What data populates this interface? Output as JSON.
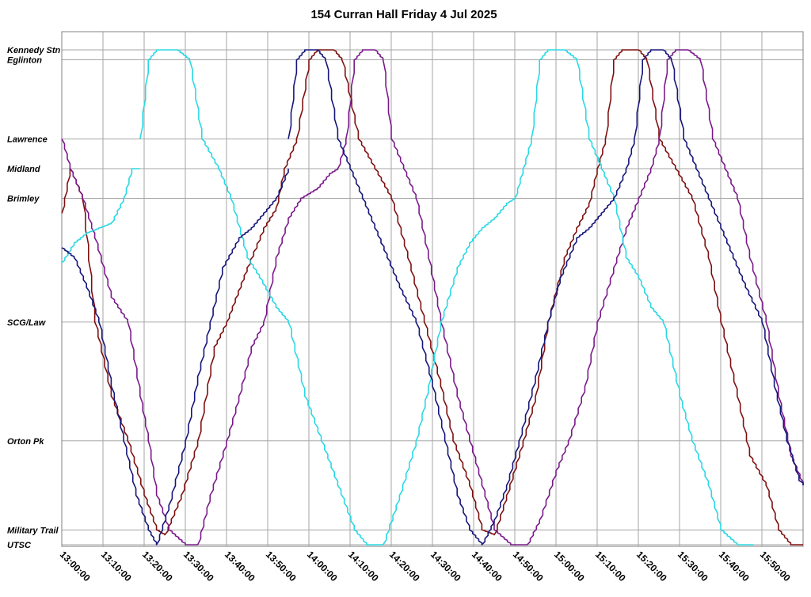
{
  "chart_data": {
    "type": "line",
    "title": "154 Curran Hall Friday 4 Jul 2025",
    "x_range": [
      "13:00:00",
      "16:00:00"
    ],
    "x_ticks": [
      "13:00:00",
      "13:10:00",
      "13:20:00",
      "13:30:00",
      "13:40:00",
      "13:50:00",
      "14:00:00",
      "14:10:00",
      "14:20:00",
      "14:30:00",
      "14:40:00",
      "14:50:00",
      "15:00:00",
      "15:10:00",
      "15:20:00",
      "15:30:00",
      "15:40:00",
      "15:50:00"
    ],
    "stops": [
      {
        "name": "Kennedy Stn",
        "pos": 100
      },
      {
        "name": "Eglinton",
        "pos": 98
      },
      {
        "name": "Lawrence",
        "pos": 82
      },
      {
        "name": "Midland",
        "pos": 76
      },
      {
        "name": "Brimley",
        "pos": 70
      },
      {
        "name": "SCG/Law",
        "pos": 45
      },
      {
        "name": "Orton Pk",
        "pos": 21
      },
      {
        "name": "Military Trail",
        "pos": 3
      },
      {
        "name": "UTSC",
        "pos": 0
      }
    ],
    "y_range": [
      0,
      100
    ],
    "grid": true,
    "legend": "none",
    "series": [
      {
        "color": "#7f1010",
        "points": [
          [
            "13:00:00",
            67
          ],
          [
            "13:02:00",
            76
          ],
          [
            "13:05:00",
            70
          ],
          [
            "13:08:00",
            45
          ],
          [
            "13:12:00",
            30
          ],
          [
            "13:16:00",
            21
          ],
          [
            "13:20:00",
            10
          ],
          [
            "13:23:00",
            3
          ],
          [
            "13:25:00",
            2
          ],
          [
            "13:29:00",
            10
          ],
          [
            "13:33:00",
            21
          ],
          [
            "13:37:00",
            40
          ],
          [
            "13:40:00",
            45
          ],
          [
            "13:45:00",
            56
          ],
          [
            "13:49:00",
            64
          ],
          [
            "13:52:00",
            68
          ],
          [
            "13:54:00",
            76
          ],
          [
            "13:57:00",
            82
          ],
          [
            "14:00:00",
            98
          ],
          [
            "14:02:00",
            100
          ],
          [
            "14:06:00",
            100
          ],
          [
            "14:08:00",
            98
          ],
          [
            "14:12:00",
            82
          ],
          [
            "14:16:00",
            76
          ],
          [
            "14:20:00",
            70
          ],
          [
            "14:24:00",
            58
          ],
          [
            "14:28:00",
            45
          ],
          [
            "14:32:00",
            32
          ],
          [
            "14:35:00",
            21
          ],
          [
            "14:39:00",
            12
          ],
          [
            "14:42:00",
            3
          ],
          [
            "14:45:00",
            2
          ],
          [
            "14:48:00",
            10
          ],
          [
            "14:52:00",
            21
          ],
          [
            "14:55:00",
            30
          ],
          [
            "14:58:00",
            45
          ],
          [
            "15:02:00",
            58
          ],
          [
            "15:05:00",
            64
          ],
          [
            "15:08:00",
            69
          ],
          [
            "15:10:00",
            76
          ],
          [
            "15:12:00",
            82
          ],
          [
            "15:14:00",
            98
          ],
          [
            "15:16:00",
            100
          ],
          [
            "15:20:00",
            100
          ],
          [
            "15:22:00",
            98
          ],
          [
            "15:25:00",
            82
          ],
          [
            "15:29:00",
            76
          ],
          [
            "15:33:00",
            70
          ],
          [
            "15:37:00",
            58
          ],
          [
            "15:40:00",
            45
          ],
          [
            "15:44:00",
            30
          ],
          [
            "15:47:00",
            18
          ],
          [
            "15:51:00",
            12
          ],
          [
            "15:54:00",
            3
          ],
          [
            "15:57:00",
            0
          ],
          [
            "16:00:00",
            0
          ]
        ]
      },
      {
        "color": "#7a1a8a",
        "points": [
          [
            "13:00:00",
            82
          ],
          [
            "13:02:00",
            76
          ],
          [
            "13:05:00",
            70
          ],
          [
            "13:08:00",
            62
          ],
          [
            "13:12:00",
            50
          ],
          [
            "13:16:00",
            45
          ],
          [
            "13:19:00",
            30
          ],
          [
            "13:21:00",
            21
          ],
          [
            "13:23:00",
            10
          ],
          [
            "13:26:00",
            3
          ],
          [
            "13:30:00",
            0
          ],
          [
            "13:33:00",
            0
          ],
          [
            "13:36:00",
            10
          ],
          [
            "13:40:00",
            21
          ],
          [
            "13:43:00",
            30
          ],
          [
            "13:46:00",
            40
          ],
          [
            "13:49:00",
            45
          ],
          [
            "13:52:00",
            58
          ],
          [
            "13:55:00",
            66
          ],
          [
            "13:58:00",
            70
          ],
          [
            "14:02:00",
            72
          ],
          [
            "14:05:00",
            75
          ],
          [
            "14:07:00",
            76
          ],
          [
            "14:09:00",
            82
          ],
          [
            "14:11:00",
            98
          ],
          [
            "14:13:00",
            100
          ],
          [
            "14:16:00",
            100
          ],
          [
            "14:18:00",
            98
          ],
          [
            "14:20:00",
            82
          ],
          [
            "14:23:00",
            76
          ],
          [
            "14:26:00",
            70
          ],
          [
            "14:29:00",
            58
          ],
          [
            "14:32:00",
            45
          ],
          [
            "14:36:00",
            30
          ],
          [
            "14:39:00",
            21
          ],
          [
            "14:42:00",
            12
          ],
          [
            "14:45:00",
            3
          ],
          [
            "14:49:00",
            0
          ],
          [
            "14:53:00",
            0
          ],
          [
            "14:56:00",
            5
          ],
          [
            "15:00:00",
            15
          ],
          [
            "15:03:00",
            21
          ],
          [
            "15:07:00",
            32
          ],
          [
            "15:10:00",
            45
          ],
          [
            "15:14:00",
            56
          ],
          [
            "15:17:00",
            64
          ],
          [
            "15:20:00",
            70
          ],
          [
            "15:23:00",
            76
          ],
          [
            "15:25:00",
            82
          ],
          [
            "15:27:00",
            98
          ],
          [
            "15:29:00",
            100
          ],
          [
            "15:32:00",
            100
          ],
          [
            "15:35:00",
            98
          ],
          [
            "15:38:00",
            82
          ],
          [
            "15:41:00",
            76
          ],
          [
            "15:44:00",
            70
          ],
          [
            "15:47:00",
            58
          ],
          [
            "15:51:00",
            45
          ],
          [
            "15:54:00",
            30
          ],
          [
            "15:57:00",
            18
          ],
          [
            "16:00:00",
            12
          ]
        ]
      },
      {
        "color": "#2ad8e4",
        "points": [
          [
            "13:00:00",
            57
          ],
          [
            "13:03:00",
            61
          ],
          [
            "13:06:00",
            63
          ],
          [
            "13:09:00",
            64
          ],
          [
            "13:12:00",
            65
          ],
          [
            "13:15:00",
            70
          ],
          [
            "13:17:00",
            76
          ],
          [
            "13:19:00",
            76
          ]
        ]
      },
      {
        "color": "#2ad8e4",
        "points": [
          [
            "13:19:00",
            82
          ],
          [
            "13:21:00",
            98
          ],
          [
            "13:23:00",
            100
          ],
          [
            "13:28:00",
            100
          ],
          [
            "13:31:00",
            98
          ],
          [
            "13:34:00",
            82
          ],
          [
            "13:38:00",
            76
          ],
          [
            "13:41:00",
            70
          ],
          [
            "13:45:00",
            58
          ],
          [
            "13:48:00",
            54
          ],
          [
            "13:52:00",
            48
          ],
          [
            "13:55:00",
            45
          ],
          [
            "13:59:00",
            30
          ],
          [
            "14:03:00",
            21
          ],
          [
            "14:07:00",
            12
          ],
          [
            "14:11:00",
            3
          ],
          [
            "14:14:00",
            0
          ],
          [
            "14:18:00",
            0
          ],
          [
            "14:22:00",
            10
          ],
          [
            "14:26:00",
            21
          ],
          [
            "14:29:00",
            32
          ],
          [
            "14:32:00",
            45
          ],
          [
            "14:36:00",
            56
          ],
          [
            "14:39:00",
            61
          ],
          [
            "14:42:00",
            64
          ],
          [
            "14:45:00",
            66
          ],
          [
            "14:48:00",
            69
          ],
          [
            "14:50:00",
            70
          ],
          [
            "14:52:00",
            76
          ],
          [
            "14:54:00",
            82
          ],
          [
            "14:56:00",
            98
          ],
          [
            "14:58:00",
            100
          ],
          [
            "15:02:00",
            100
          ],
          [
            "15:05:00",
            98
          ],
          [
            "15:08:00",
            82
          ],
          [
            "15:11:00",
            76
          ],
          [
            "15:14:00",
            70
          ],
          [
            "15:17:00",
            58
          ],
          [
            "15:20:00",
            54
          ],
          [
            "15:23:00",
            48
          ],
          [
            "15:26:00",
            45
          ],
          [
            "15:30:00",
            30
          ],
          [
            "15:33:00",
            21
          ],
          [
            "15:37:00",
            12
          ],
          [
            "15:40:00",
            3
          ],
          [
            "15:44:00",
            0
          ],
          [
            "15:48:00",
            0
          ]
        ]
      },
      {
        "color": "#16167a",
        "points": [
          [
            "13:00:00",
            60
          ],
          [
            "13:03:00",
            58
          ],
          [
            "13:06:00",
            52
          ],
          [
            "13:09:00",
            45
          ],
          [
            "13:12:00",
            32
          ],
          [
            "13:15:00",
            21
          ],
          [
            "13:18:00",
            10
          ],
          [
            "13:21:00",
            3
          ],
          [
            "13:23:00",
            0
          ],
          [
            "13:26:00",
            8
          ],
          [
            "13:30:00",
            21
          ],
          [
            "13:33:00",
            34
          ],
          [
            "13:36:00",
            45
          ],
          [
            "13:39:00",
            56
          ],
          [
            "13:43:00",
            62
          ],
          [
            "13:46:00",
            64
          ],
          [
            "13:49:00",
            67
          ],
          [
            "13:52:00",
            70
          ],
          [
            "13:55:00",
            76
          ]
        ]
      },
      {
        "color": "#16167a",
        "points": [
          [
            "13:55:00",
            82
          ],
          [
            "13:57:00",
            98
          ],
          [
            "13:59:00",
            100
          ],
          [
            "14:02:00",
            100
          ],
          [
            "14:04:00",
            98
          ],
          [
            "14:07:00",
            82
          ],
          [
            "14:10:00",
            76
          ],
          [
            "14:13:00",
            70
          ],
          [
            "14:16:00",
            64
          ],
          [
            "14:19:00",
            58
          ],
          [
            "14:22:00",
            52
          ],
          [
            "14:26:00",
            45
          ],
          [
            "14:30:00",
            32
          ],
          [
            "14:33:00",
            21
          ],
          [
            "14:36:00",
            10
          ],
          [
            "14:39:00",
            3
          ],
          [
            "14:42:00",
            0
          ],
          [
            "14:45:00",
            5
          ],
          [
            "14:48:00",
            12
          ],
          [
            "14:51:00",
            21
          ],
          [
            "14:55:00",
            34
          ],
          [
            "14:58:00",
            45
          ],
          [
            "15:01:00",
            54
          ],
          [
            "15:05:00",
            62
          ],
          [
            "15:08:00",
            64
          ],
          [
            "15:11:00",
            67
          ],
          [
            "15:14:00",
            70
          ],
          [
            "15:17:00",
            76
          ],
          [
            "15:19:00",
            82
          ],
          [
            "15:21:00",
            98
          ],
          [
            "15:23:00",
            100
          ],
          [
            "15:26:00",
            100
          ],
          [
            "15:28:00",
            98
          ],
          [
            "15:31:00",
            82
          ],
          [
            "15:34:00",
            76
          ],
          [
            "15:37:00",
            70
          ],
          [
            "15:40:00",
            64
          ],
          [
            "15:43:00",
            58
          ],
          [
            "15:46:00",
            52
          ],
          [
            "15:50:00",
            45
          ],
          [
            "15:53:00",
            32
          ],
          [
            "15:56:00",
            21
          ],
          [
            "15:59:00",
            13
          ],
          [
            "16:00:00",
            12
          ]
        ]
      }
    ]
  }
}
